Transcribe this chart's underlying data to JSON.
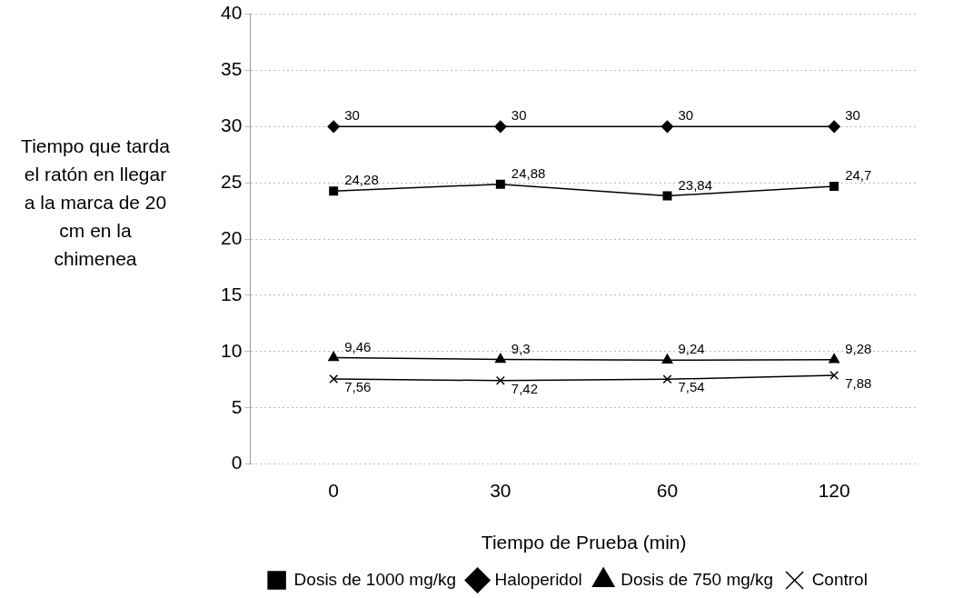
{
  "chart_data": {
    "type": "line",
    "xlabel": "Tiempo de Prueba (min)",
    "ylabel": "Tiempo que tarda el ratón en llegar a la marca de 20 cm en la chimenea",
    "categories": [
      "0",
      "30",
      "60",
      "120"
    ],
    "ylim": [
      0,
      40
    ],
    "yticks": [
      0,
      5,
      10,
      15,
      20,
      25,
      30,
      35,
      40
    ],
    "grid": "y",
    "legend": "bottom",
    "series": [
      {
        "name": "Dosis de 1000 mg/kg",
        "color": "#000000",
        "marker": "square",
        "values": [
          24.28,
          24.88,
          23.84,
          24.7
        ],
        "value_labels": [
          "24,28",
          "24,88",
          "23,84",
          "24,7"
        ]
      },
      {
        "name": "Haloperidol",
        "color": "#000000",
        "marker": "diamond",
        "values": [
          30,
          30,
          30,
          30
        ],
        "value_labels": [
          "30",
          "30",
          "30",
          "30"
        ]
      },
      {
        "name": "Dosis de 750 mg/kg",
        "color": "#000000",
        "marker": "triangle",
        "values": [
          9.46,
          9.3,
          9.24,
          9.28
        ],
        "value_labels": [
          "9,46",
          "9,3",
          "9,24",
          "9,28"
        ]
      },
      {
        "name": "Control",
        "color": "#000000",
        "marker": "cross",
        "values": [
          7.56,
          7.42,
          7.54,
          7.88
        ],
        "value_labels": [
          "7,56",
          "7,42",
          "7,54",
          "7,88"
        ]
      }
    ]
  }
}
